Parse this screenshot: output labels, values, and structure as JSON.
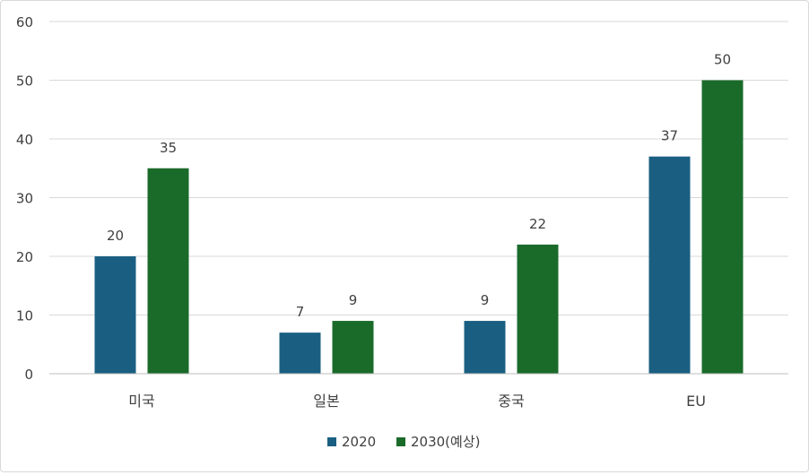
{
  "chart_data": {
    "type": "bar",
    "title": "",
    "xlabel": "",
    "ylabel": "",
    "categories": [
      "미국",
      "일본",
      "중국",
      "EU"
    ],
    "series": [
      {
        "name": "2020",
        "color": "#1a5f82",
        "values": [
          20,
          7,
          9,
          37
        ]
      },
      {
        "name": "2030(예상)",
        "color": "#1a6b2a",
        "values": [
          35,
          9,
          22,
          50
        ]
      }
    ],
    "ylim": [
      0,
      60
    ],
    "yticks": [
      0,
      10,
      20,
      30,
      40,
      50,
      60
    ],
    "grid": true,
    "data_labels": true,
    "legend_position": "bottom"
  }
}
